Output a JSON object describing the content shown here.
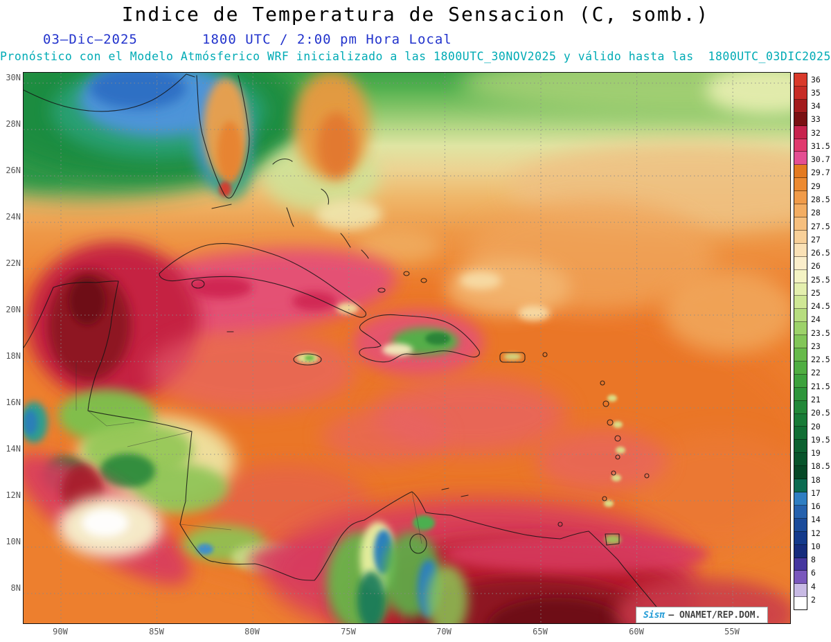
{
  "header": {
    "title": "Indice de Temperatura de Sensacion (C, somb.)",
    "date": "03–Dic–2025",
    "time": "1800 UTC / 2:00 pm Hora Local",
    "forecast": "Pronóstico con el Modelo Atmósferico WRF inicializado a las 1800UTC_30NOV2025 y válido hasta las  1800UTC_03DIC2025"
  },
  "axes": {
    "lat": [
      "30N",
      "28N",
      "26N",
      "24N",
      "22N",
      "20N",
      "18N",
      "16N",
      "14N",
      "12N",
      "10N",
      "8N"
    ],
    "lon": [
      "90W",
      "85W",
      "80W",
      "75W",
      "70W",
      "65W",
      "60W",
      "55W"
    ]
  },
  "colorbar": {
    "units": "C",
    "levels": [
      {
        "label": "36",
        "color": "#D93A2B"
      },
      {
        "label": "35",
        "color": "#C72C26"
      },
      {
        "label": "34",
        "color": "#A31B1D"
      },
      {
        "label": "33",
        "color": "#7A1013"
      },
      {
        "label": "32",
        "color": "#C7234E"
      },
      {
        "label": "31.5",
        "color": "#E03A6E"
      },
      {
        "label": "30.7",
        "color": "#E44F93"
      },
      {
        "label": "29.7",
        "color": "#E47A20"
      },
      {
        "label": "29",
        "color": "#EC8A31"
      },
      {
        "label": "28.5",
        "color": "#F09B49"
      },
      {
        "label": "28",
        "color": "#F3AD62"
      },
      {
        "label": "27.5",
        "color": "#F6BF7E"
      },
      {
        "label": "27",
        "color": "#F8D099"
      },
      {
        "label": "26.5",
        "color": "#FAE1B6"
      },
      {
        "label": "26",
        "color": "#FBEECB"
      },
      {
        "label": "25.5",
        "color": "#F4F3C4"
      },
      {
        "label": "25",
        "color": "#E4EFAE"
      },
      {
        "label": "24.5",
        "color": "#CFE795"
      },
      {
        "label": "24",
        "color": "#B7DD7F"
      },
      {
        "label": "23.5",
        "color": "#9DD26A"
      },
      {
        "label": "23",
        "color": "#82C658"
      },
      {
        "label": "22.5",
        "color": "#67BA4B"
      },
      {
        "label": "22",
        "color": "#50AE42"
      },
      {
        "label": "21.5",
        "color": "#3DA23D"
      },
      {
        "label": "21",
        "color": "#2E953B"
      },
      {
        "label": "20.5",
        "color": "#228839"
      },
      {
        "label": "20",
        "color": "#187B37"
      },
      {
        "label": "19.5",
        "color": "#116E34"
      },
      {
        "label": "19",
        "color": "#0C6130"
      },
      {
        "label": "18.5",
        "color": "#08542B"
      },
      {
        "label": "18",
        "color": "#064826"
      },
      {
        "label": "17",
        "color": "#0B6B51"
      },
      {
        "label": "16",
        "color": "#2F7EC2"
      },
      {
        "label": "14",
        "color": "#2561AD"
      },
      {
        "label": "12",
        "color": "#1B4B9A"
      },
      {
        "label": "10",
        "color": "#143A8B"
      },
      {
        "label": "8",
        "color": "#162C7D"
      },
      {
        "label": "6",
        "color": "#45379F"
      },
      {
        "label": "4",
        "color": "#7A58BC"
      },
      {
        "label": "2",
        "color": "#C8BAE4"
      },
      {
        "label": "",
        "color": "#FFFFFF"
      }
    ]
  },
  "watermark": {
    "brand": "Sisπ",
    "source": "– ONAMET/REP.DOM."
  }
}
